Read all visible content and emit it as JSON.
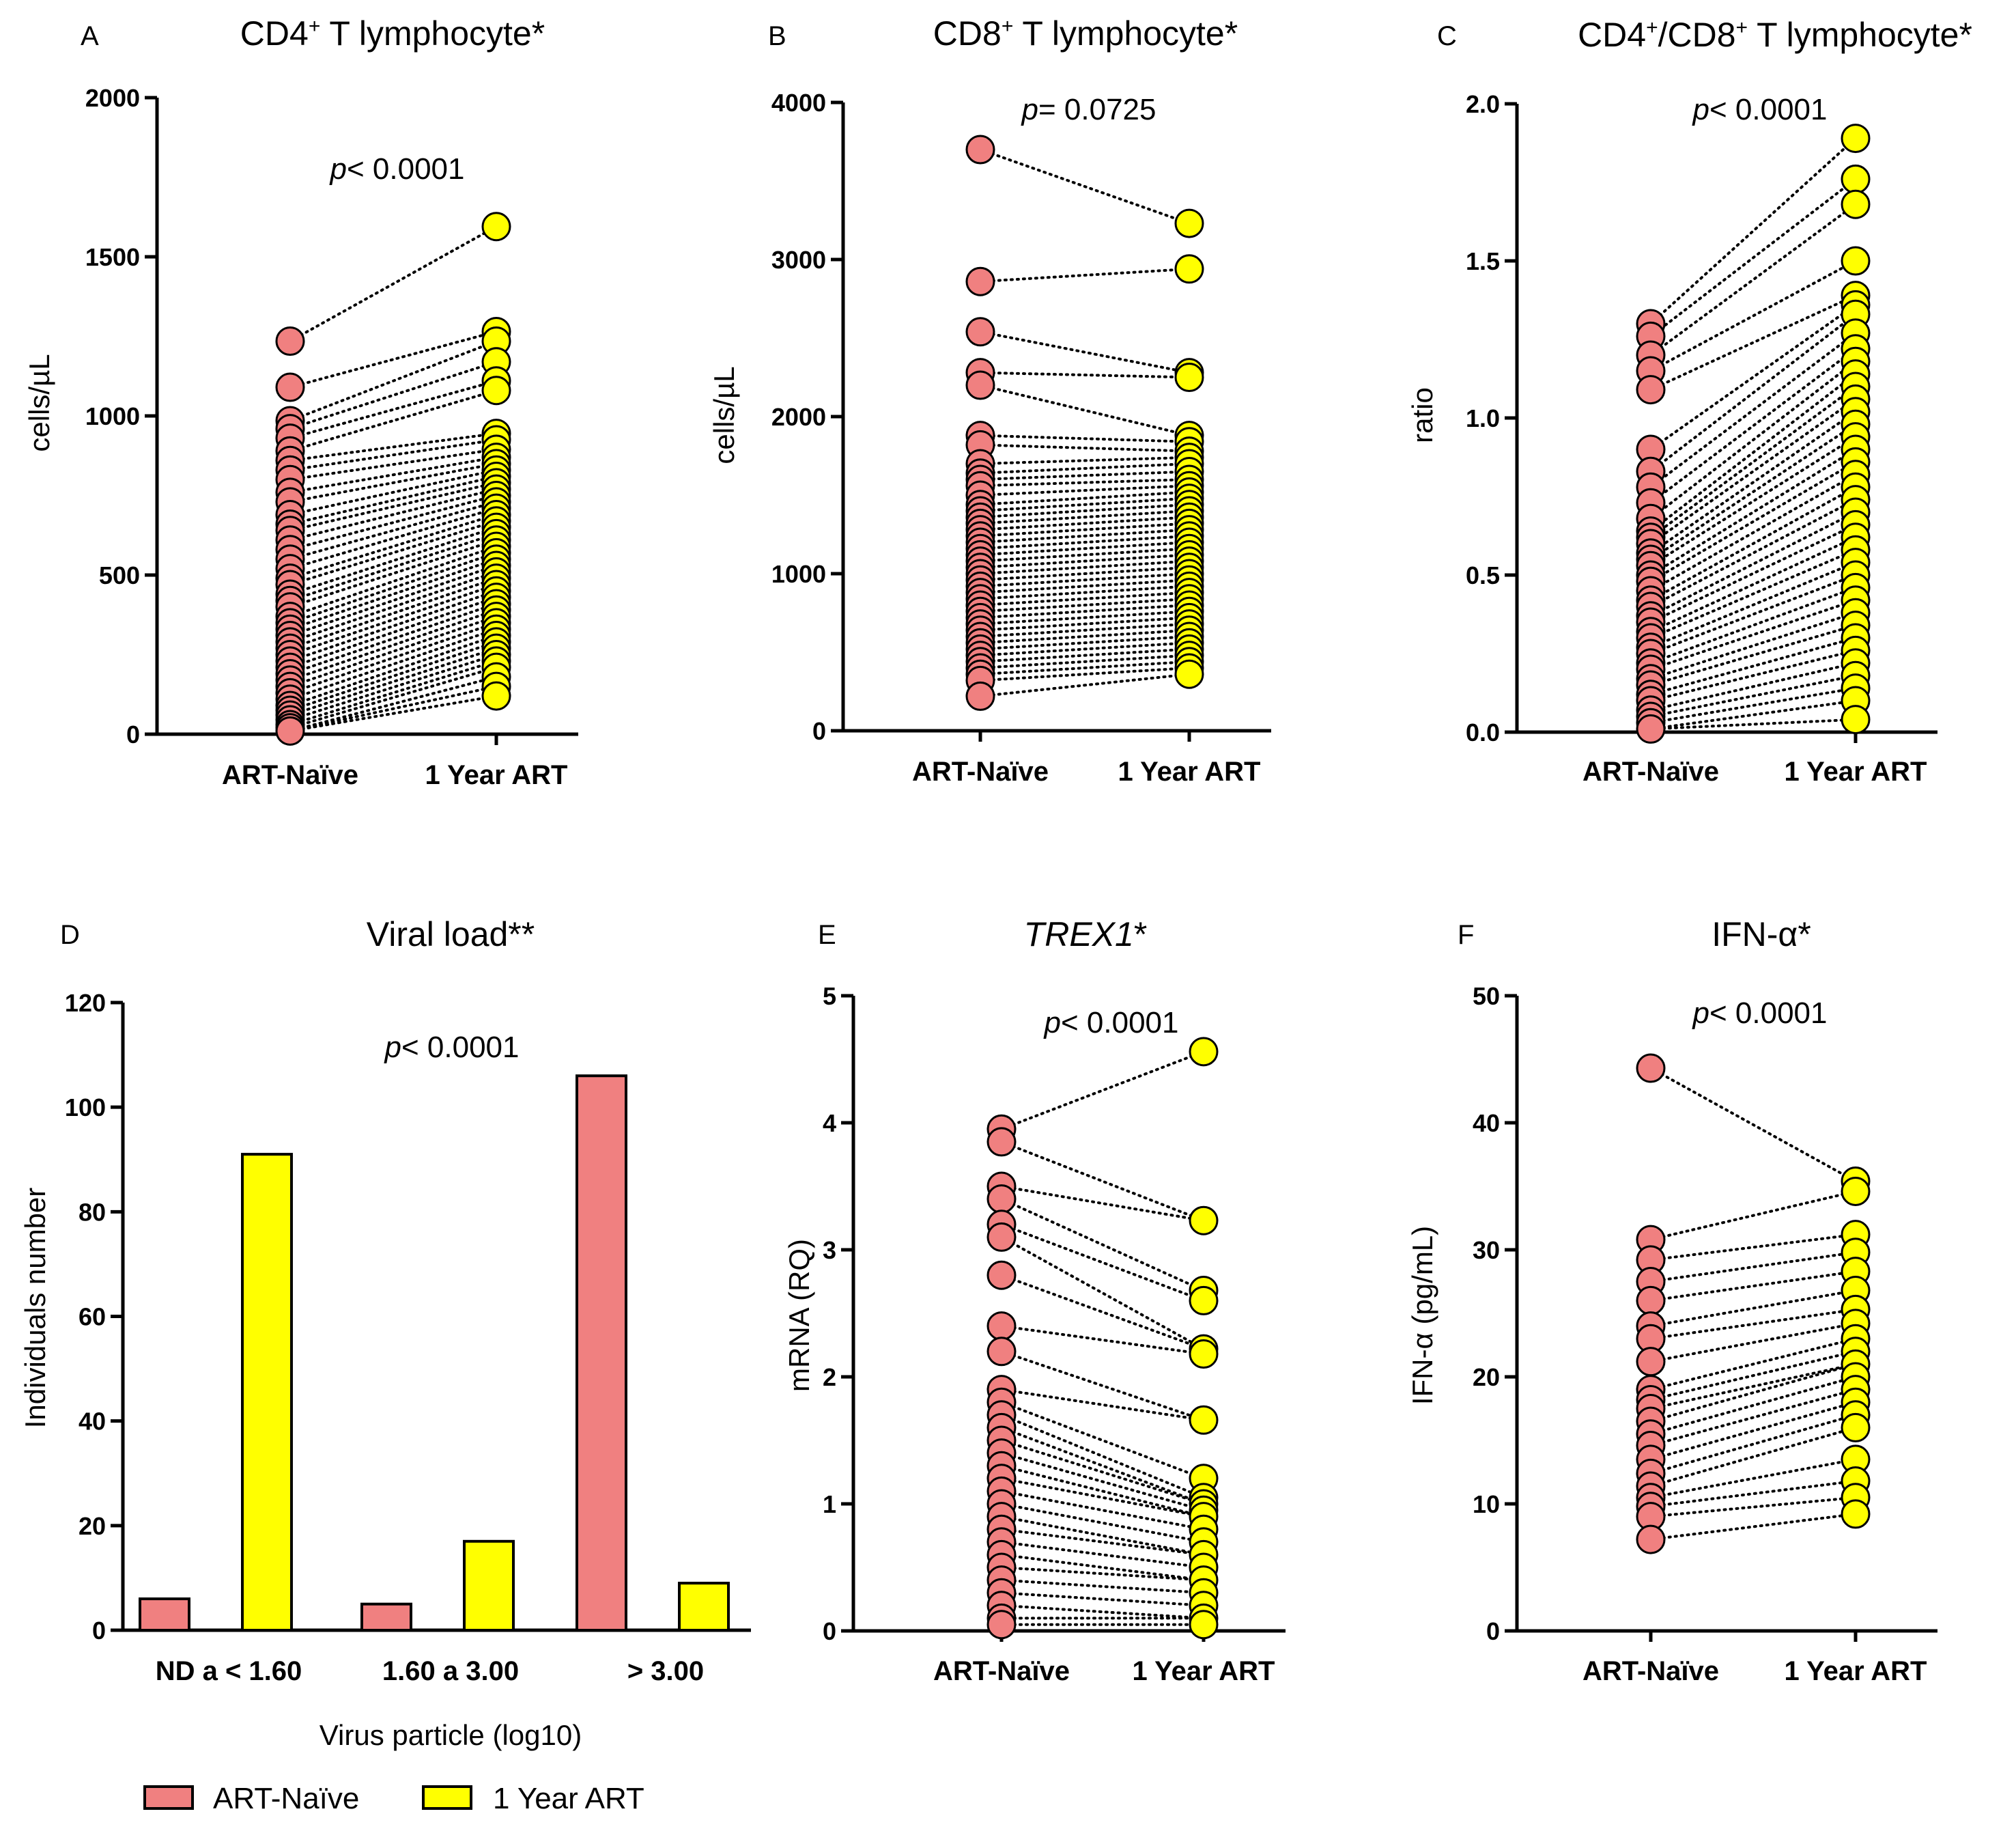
{
  "colors": {
    "naive": "#f08080",
    "art": "#ffff00",
    "outline": "#000000"
  },
  "legend": {
    "naive": "ART-Naïve",
    "art": "1 Year ART"
  },
  "chart_data": [
    {
      "id": "A",
      "type": "scatter",
      "letter": "A",
      "title_main": "CD4",
      "title_sup": "+",
      "title_rest": " T lymphocyte*",
      "ylabel": "cells/µL",
      "ylim": [
        0,
        2000
      ],
      "yticks": [
        0,
        500,
        1000,
        1500,
        2000
      ],
      "categories": [
        "ART-Naïve",
        "1 Year ART"
      ],
      "p_prefix": "p",
      "p_text": "< 0.0001",
      "naive": [
        1235,
        1090,
        985,
        960,
        930,
        890,
        860,
        830,
        800,
        760,
        730,
        690,
        660,
        640,
        610,
        580,
        550,
        520,
        490,
        470,
        440,
        420,
        400,
        370,
        350,
        330,
        310,
        290,
        270,
        250,
        230,
        210,
        190,
        170,
        150,
        130,
        110,
        90,
        75,
        60,
        45,
        30,
        20,
        10
      ],
      "art": [
        1595,
        1265,
        1235,
        1170,
        1110,
        1080,
        945,
        925,
        895,
        870,
        850,
        830,
        810,
        790,
        770,
        750,
        730,
        710,
        690,
        670,
        650,
        630,
        610,
        590,
        570,
        550,
        530,
        510,
        490,
        470,
        450,
        430,
        410,
        390,
        370,
        350,
        330,
        310,
        290,
        270,
        250,
        230,
        210,
        180,
        150,
        120
      ]
    },
    {
      "id": "B",
      "type": "scatter",
      "letter": "B",
      "title_main": "CD8",
      "title_sup": "+",
      "title_rest": " T lymphocyte*",
      "ylabel": "cells/µL",
      "ylim": [
        0,
        4000
      ],
      "yticks": [
        0,
        1000,
        2000,
        3000,
        4000
      ],
      "categories": [
        "ART-Naïve",
        "1 Year ART"
      ],
      "p_prefix": "p",
      "p_text": "= 0.0725",
      "naive": [
        3700,
        2860,
        2540,
        2280,
        2200,
        1880,
        1820,
        1700,
        1640,
        1600,
        1560,
        1500,
        1440,
        1400,
        1360,
        1320,
        1280,
        1240,
        1200,
        1160,
        1120,
        1080,
        1040,
        1000,
        960,
        920,
        880,
        840,
        800,
        760,
        720,
        680,
        640,
        600,
        560,
        520,
        480,
        440,
        400,
        360,
        320,
        220
      ],
      "art": [
        3230,
        2940,
        2280,
        2250,
        1880,
        1840,
        1780,
        1740,
        1700,
        1650,
        1600,
        1560,
        1520,
        1480,
        1440,
        1400,
        1360,
        1320,
        1280,
        1240,
        1200,
        1160,
        1120,
        1080,
        1040,
        1000,
        960,
        920,
        880,
        840,
        800,
        760,
        720,
        680,
        640,
        600,
        560,
        520,
        480,
        440,
        400,
        360
      ]
    },
    {
      "id": "C",
      "type": "scatter",
      "letter": "C",
      "title_main": "CD4",
      "title_sup": "+",
      "title_mid": "/CD8",
      "title_sup2": "+",
      "title_rest": " T lymphocyte*",
      "ylabel": "ratio",
      "ylim": [
        0,
        2.0
      ],
      "yticks": [
        0,
        0.5,
        1.0,
        1.5,
        2.0
      ],
      "tick_labels": [
        "0.0",
        "0.5",
        "1.0",
        "1.5",
        "2.0"
      ],
      "categories": [
        "ART-Naïve",
        "1 Year ART"
      ],
      "p_prefix": "p",
      "p_text": "< 0.0001",
      "naive": [
        1.3,
        1.26,
        1.2,
        1.15,
        1.09,
        0.9,
        0.83,
        0.78,
        0.73,
        0.68,
        0.64,
        0.62,
        0.6,
        0.57,
        0.55,
        0.53,
        0.5,
        0.48,
        0.45,
        0.42,
        0.4,
        0.37,
        0.35,
        0.32,
        0.3,
        0.27,
        0.25,
        0.22,
        0.2,
        0.17,
        0.15,
        0.12,
        0.1,
        0.07,
        0.05,
        0.03,
        0.01
      ],
      "art": [
        1.89,
        1.76,
        1.68,
        1.5,
        1.39,
        1.36,
        1.33,
        1.27,
        1.22,
        1.18,
        1.14,
        1.1,
        1.06,
        1.02,
        0.98,
        0.94,
        0.9,
        0.86,
        0.82,
        0.78,
        0.74,
        0.7,
        0.66,
        0.62,
        0.58,
        0.54,
        0.5,
        0.46,
        0.42,
        0.38,
        0.34,
        0.3,
        0.26,
        0.22,
        0.18,
        0.14,
        0.1,
        0.04
      ]
    },
    {
      "id": "D",
      "type": "bar",
      "letter": "D",
      "title_main": "Viral load**",
      "ylabel": "Individuals number",
      "xlabel": "Virus particle (log10)",
      "ylim": [
        0,
        120
      ],
      "yticks": [
        0,
        20,
        40,
        60,
        80,
        100,
        120
      ],
      "categories": [
        "ND a < 1.60",
        "1.60 a 3.00",
        "> 3.00"
      ],
      "series": [
        {
          "name": "ART-Naïve",
          "values": [
            6,
            5,
            106
          ]
        },
        {
          "name": "1 Year ART",
          "values": [
            91,
            17,
            9
          ]
        }
      ],
      "p_prefix": "p",
      "p_text": "< 0.0001"
    },
    {
      "id": "E",
      "type": "scatter",
      "letter": "E",
      "title_italic": "TREX1",
      "title_rest": "*",
      "ylabel": "mRNA (RQ)",
      "ylim": [
        0,
        5
      ],
      "yticks": [
        0,
        1,
        2,
        3,
        4,
        5
      ],
      "categories": [
        "ART-Naïve",
        "1 Year ART"
      ],
      "p_prefix": "p",
      "p_text": "< 0.0001",
      "naive": [
        3.95,
        3.85,
        3.5,
        3.4,
        3.2,
        3.1,
        2.8,
        2.4,
        2.2,
        1.9,
        1.8,
        1.7,
        1.6,
        1.5,
        1.4,
        1.3,
        1.2,
        1.1,
        1.0,
        0.9,
        0.8,
        0.7,
        0.6,
        0.5,
        0.4,
        0.3,
        0.2,
        0.1,
        0.05
      ],
      "art": [
        4.56,
        3.23,
        2.68,
        2.6,
        2.22,
        2.18,
        1.66,
        1.2,
        1.05,
        1.0,
        0.95,
        0.9,
        0.8,
        0.7,
        0.6,
        0.5,
        0.4,
        0.3,
        0.2,
        0.1,
        0.05
      ]
    },
    {
      "id": "F",
      "type": "scatter",
      "letter": "F",
      "title_main": "IFN-α*",
      "ylabel": "IFN-α (pg/mL)",
      "ylim": [
        0,
        50
      ],
      "yticks": [
        0,
        10,
        20,
        30,
        40,
        50
      ],
      "categories": [
        "ART-Naïve",
        "1 Year ART"
      ],
      "p_prefix": "p",
      "p_text": "< 0.0001",
      "naive": [
        44.3,
        30.8,
        29.2,
        27.5,
        26.0,
        24.0,
        23.0,
        21.2,
        19.0,
        18.2,
        17.5,
        16.5,
        15.5,
        14.6,
        13.5,
        12.4,
        11.4,
        10.5,
        9.8,
        9.0,
        7.2
      ],
      "art": [
        35.4,
        34.6,
        31.2,
        29.8,
        28.3,
        26.8,
        25.3,
        24.2,
        23.0,
        22.0,
        21.0,
        20.0,
        19.0,
        18.0,
        17.0,
        16.0,
        13.5,
        11.8,
        10.5,
        9.2
      ]
    }
  ]
}
